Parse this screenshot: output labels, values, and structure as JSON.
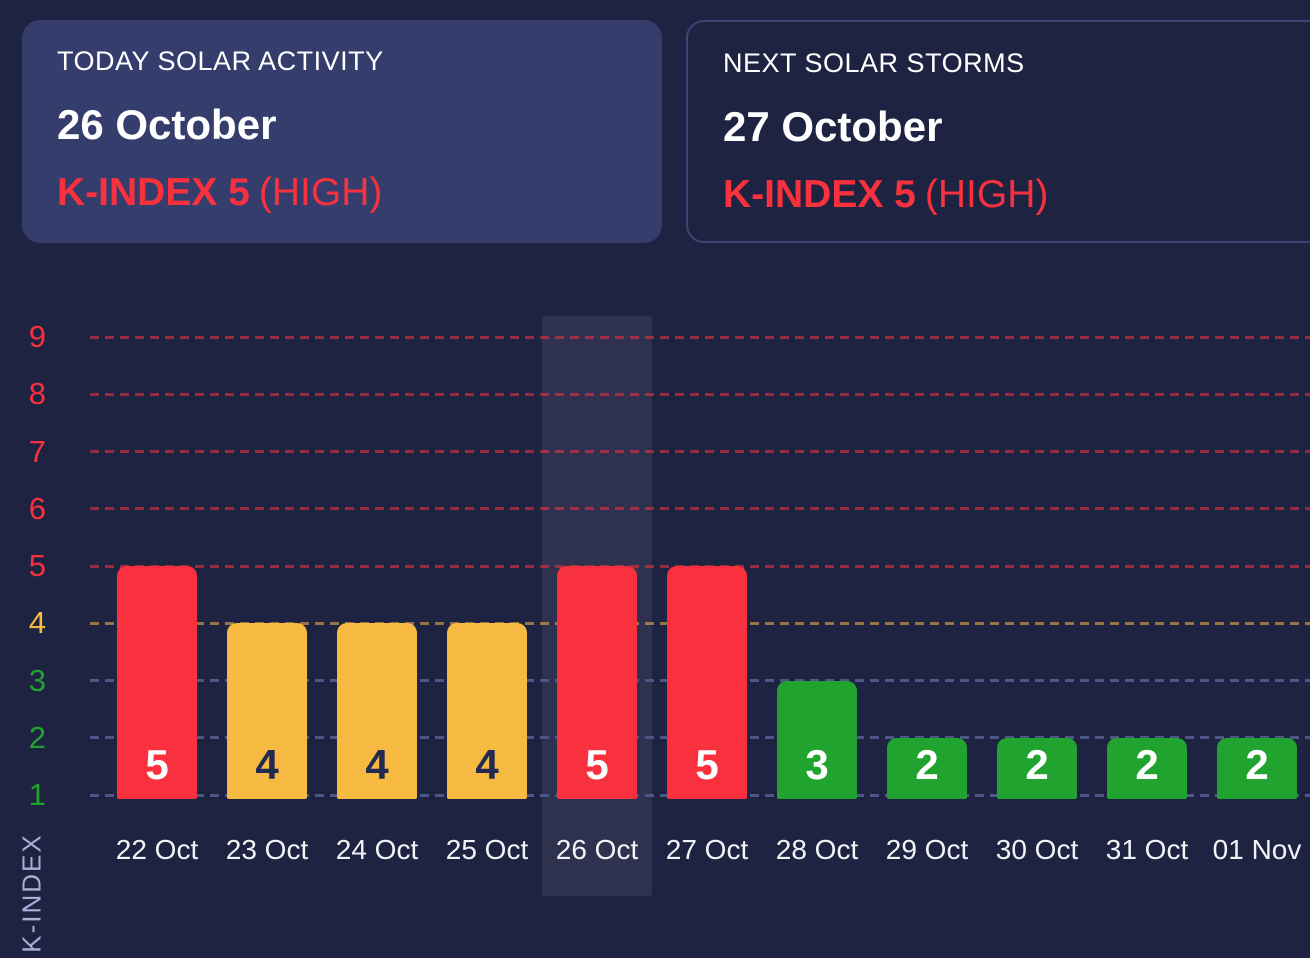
{
  "theme": {
    "bg": "#1f2342",
    "card_bg": "#353d6d",
    "card_border": "#3d4576",
    "red": "#f9303d",
    "amber": "#f6b942",
    "green": "#21a42f",
    "white": "#ffffff",
    "dark_text": "#232a52",
    "xlabel_color": "#f2f3f7",
    "axis_title_color": "#a5b1d8",
    "highlight": "rgba(255,255,255,0.07)",
    "grid_red": "rgba(249,48,61,0.55)",
    "grid_amber": "rgba(246,185,66,0.55)",
    "grid_blue": "#4d5787"
  },
  "cards": {
    "today": {
      "title": "TODAY SOLAR ACTIVITY",
      "date": "26 October",
      "kindex_label": "K-INDEX 5",
      "severity": "(HIGH)"
    },
    "next": {
      "title": "NEXT SOLAR STORMS",
      "date": "27 October",
      "kindex_label": "K-INDEX 5",
      "severity": "(HIGH)"
    }
  },
  "chart_data": {
    "type": "bar",
    "title": "",
    "xlabel": "",
    "ylabel": "K-INDEX",
    "categories": [
      "22 Oct",
      "23 Oct",
      "24 Oct",
      "25 Oct",
      "26 Oct",
      "27 Oct",
      "28 Oct",
      "29 Oct",
      "30 Oct",
      "31 Oct",
      "01 Nov"
    ],
    "values": [
      5,
      4,
      4,
      4,
      5,
      5,
      3,
      2,
      2,
      2,
      2
    ],
    "ylim": [
      1,
      9
    ],
    "grid": "dashed horizontal",
    "legend": "none",
    "highlighted_category": "26 Oct",
    "color_by_value": {
      "2": "green",
      "3": "green",
      "4": "amber",
      "5": "red"
    },
    "yticks": [
      {
        "value": 9,
        "label_color": "red",
        "grid_color": "red"
      },
      {
        "value": 8,
        "label_color": "red",
        "grid_color": "red"
      },
      {
        "value": 7,
        "label_color": "red",
        "grid_color": "red"
      },
      {
        "value": 6,
        "label_color": "red",
        "grid_color": "red"
      },
      {
        "value": 5,
        "label_color": "red",
        "grid_color": "red"
      },
      {
        "value": 4,
        "label_color": "amber",
        "grid_color": "amber"
      },
      {
        "value": 3,
        "label_color": "green",
        "grid_color": "blue"
      },
      {
        "value": 2,
        "label_color": "green",
        "grid_color": "blue"
      },
      {
        "value": 1,
        "label_color": "green",
        "grid_color": "blue"
      }
    ]
  }
}
